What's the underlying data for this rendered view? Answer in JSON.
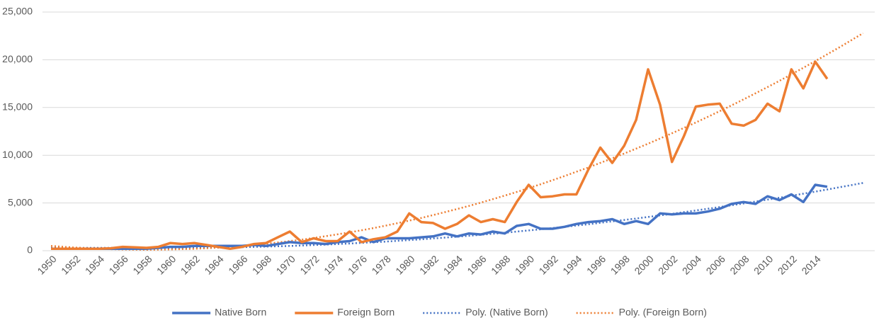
{
  "chart_data": {
    "type": "line",
    "categories": [
      "1950",
      null,
      "1952",
      null,
      "1954",
      null,
      "1956",
      null,
      "1958",
      null,
      "1960",
      null,
      "1962",
      null,
      "1964",
      null,
      "1966",
      null,
      "1968",
      null,
      "1970",
      null,
      "1972",
      null,
      "1974",
      null,
      "1976",
      null,
      "1978",
      null,
      "1980",
      null,
      "1982",
      null,
      "1984",
      null,
      "1986",
      null,
      "1988",
      null,
      "1990",
      null,
      "1992",
      null,
      "1994",
      null,
      "1996",
      null,
      "1998",
      null,
      "2000",
      null,
      "2002",
      null,
      "2004",
      null,
      "2006",
      null,
      "2008",
      null,
      "2010",
      null,
      "2012",
      null,
      "2014",
      null,
      null,
      null,
      null
    ],
    "series": [
      {
        "name": "Native Born",
        "color": "#4472c4",
        "style": "solid",
        "values": [
          200,
          200,
          200,
          200,
          200,
          200,
          200,
          200,
          200,
          300,
          400,
          400,
          500,
          500,
          500,
          500,
          500,
          600,
          500,
          700,
          900,
          800,
          800,
          700,
          900,
          1000,
          1400,
          900,
          1300,
          1300,
          1300,
          1400,
          1500,
          1800,
          1500,
          1800,
          1700,
          2000,
          1800,
          2600,
          2800,
          2300,
          2300,
          2500,
          2800,
          3000,
          3100,
          3300,
          2800,
          3100,
          2800,
          3900,
          3800,
          3900,
          3900,
          4100,
          4400,
          4900,
          5100,
          4900,
          5700,
          5300,
          5900,
          5100,
          6900,
          6700,
          null,
          null,
          null
        ]
      },
      {
        "name": "Foreign Born",
        "color": "#ed7d31",
        "style": "solid",
        "values": [
          200,
          200,
          200,
          200,
          200,
          250,
          400,
          350,
          300,
          400,
          800,
          700,
          800,
          600,
          400,
          200,
          400,
          700,
          800,
          1400,
          2000,
          900,
          1300,
          1000,
          1000,
          2000,
          900,
          1200,
          1400,
          2000,
          3900,
          3000,
          2900,
          2300,
          2800,
          3700,
          3000,
          3300,
          3000,
          5100,
          6900,
          5600,
          5700,
          5900,
          5900,
          8500,
          10800,
          9200,
          11000,
          13700,
          19000,
          15300,
          9300,
          12000,
          15100,
          15300,
          15400,
          13300,
          13100,
          13700,
          15400,
          14600,
          19000,
          17000,
          19800,
          18000,
          null,
          null,
          null
        ]
      },
      {
        "name": "Poly. (Native Born)",
        "color": "#4472c4",
        "style": "dotted",
        "values": [
          300,
          300,
          300,
          300,
          300,
          300,
          300,
          300,
          300,
          300,
          300,
          300,
          310,
          320,
          330,
          350,
          370,
          400,
          430,
          460,
          500,
          540,
          590,
          640,
          700,
          750,
          820,
          880,
          950,
          1030,
          1110,
          1190,
          1280,
          1370,
          1460,
          1560,
          1670,
          1770,
          1880,
          2000,
          2120,
          2240,
          2370,
          2500,
          2640,
          2770,
          2920,
          3070,
          3220,
          3370,
          3530,
          3700,
          3860,
          4040,
          4210,
          4390,
          4570,
          4760,
          4950,
          5150,
          5350,
          5550,
          5760,
          5970,
          6190,
          6410,
          6640,
          6860,
          7100
        ]
      },
      {
        "name": "Poly. (Foreign Born)",
        "color": "#ed7d31",
        "style": "dotted",
        "values": [
          500,
          410,
          330,
          260,
          200,
          160,
          130,
          110,
          100,
          110,
          130,
          160,
          200,
          260,
          330,
          410,
          500,
          610,
          730,
          860,
          1010,
          1160,
          1330,
          1520,
          1710,
          1920,
          2140,
          2370,
          2620,
          2880,
          3150,
          3430,
          3730,
          4040,
          4360,
          4690,
          5040,
          5400,
          5770,
          6150,
          6550,
          6960,
          7380,
          7820,
          8270,
          8720,
          9200,
          9680,
          10180,
          10690,
          11210,
          11750,
          12300,
          12860,
          13430,
          14020,
          14620,
          15230,
          15850,
          16490,
          17140,
          17800,
          18470,
          19160,
          19860,
          20570,
          21290,
          22030,
          22780
        ]
      }
    ],
    "ylim": [
      0,
      25000
    ],
    "yticks": [
      0,
      {
        "value": 5000,
        "label": "5,000"
      },
      {
        "value": 10000,
        "label": "10,000"
      },
      {
        "value": 15000,
        "label": "15,000"
      },
      {
        "value": 20000,
        "label": "20,000"
      },
      {
        "value": 25000,
        "label": "25,000"
      }
    ],
    "grid": true,
    "legend": "bottom"
  }
}
